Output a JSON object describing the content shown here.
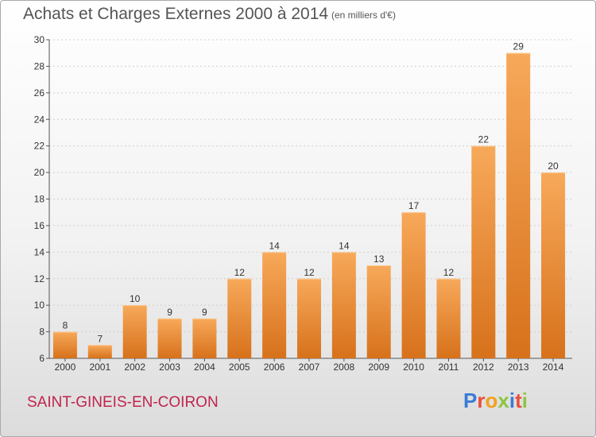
{
  "header": {
    "title": "Achats et Charges Externes 2000 à 2014",
    "subtitle": "(en milliers d'€)"
  },
  "footer": {
    "commune": "SAINT-GINEIS-EN-COIRON",
    "logo": "Proxiti"
  },
  "colors": {
    "bar_top": "#f7a95a",
    "bar_bottom": "#d7711b",
    "commune_text": "#c0244e"
  },
  "chart_data": {
    "type": "bar",
    "title": "Achats et Charges Externes 2000 à 2014",
    "subtitle": "(en milliers d'€)",
    "categories": [
      "2000",
      "2001",
      "2002",
      "2003",
      "2004",
      "2005",
      "2006",
      "2007",
      "2008",
      "2009",
      "2010",
      "2011",
      "2012",
      "2013",
      "2014"
    ],
    "values": [
      8,
      7,
      10,
      9,
      9,
      12,
      14,
      12,
      14,
      13,
      17,
      12,
      22,
      29,
      20
    ],
    "ylim": [
      6,
      30
    ],
    "yticks": [
      6,
      8,
      10,
      12,
      14,
      16,
      18,
      20,
      22,
      24,
      26,
      28,
      30
    ],
    "grid": true,
    "data_labels": true
  }
}
